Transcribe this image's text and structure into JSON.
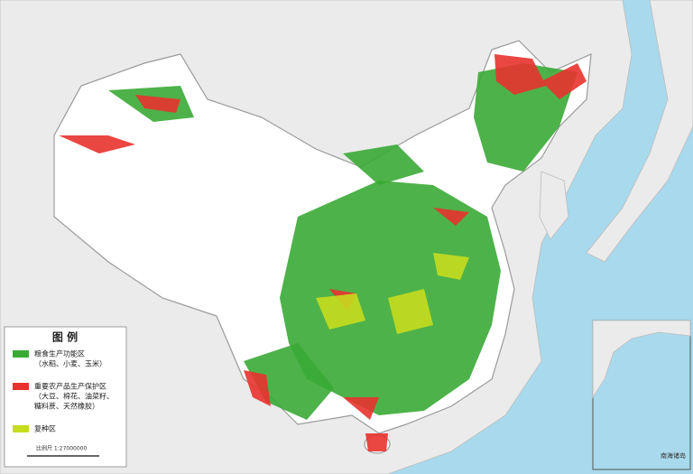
{
  "legend": {
    "title": "图 例",
    "items": [
      {
        "color": "#3aaa35",
        "lines": [
          "粮食生产功能区",
          "（水稻、小麦、玉米）"
        ]
      },
      {
        "color": "#e8322d",
        "lines": [
          "重要农产品生产保护区",
          "（大豆、棉花、油菜籽、",
          "糖料蔗、天然橡胶）"
        ]
      },
      {
        "color": "#c6dc1e",
        "lines": [
          "复种区"
        ]
      }
    ]
  },
  "scale": "比例尺 1:27000000",
  "inset": {
    "title": "南海诸岛"
  }
}
